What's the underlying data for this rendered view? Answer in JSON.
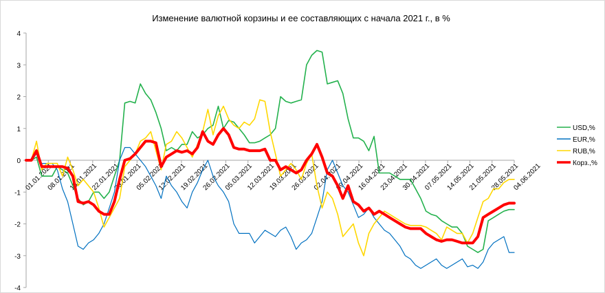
{
  "chart_data": {
    "type": "line",
    "title": "Изменение  валютной корзины и ее составляющих  с начала 2021 г., в %",
    "xlabel": "",
    "ylabel": "",
    "ylim": [
      -4,
      4
    ],
    "yticks": [
      -4,
      -3,
      -2,
      -1,
      0,
      1,
      2,
      3,
      4
    ],
    "grid": false,
    "legend_position": "right",
    "x_tick_labels": [
      "01.01.2021",
      "08.01.2021",
      "15.01.2021",
      "22.01.2021",
      "29.01.2021",
      "05.02.2021",
      "12.02.2021",
      "19.02.2021",
      "26.02.2021",
      "05.03.2021",
      "12.03.2021",
      "19.03.2021",
      "26.03.2021",
      "02.04.2021",
      "09.04.2021",
      "16.04.2021",
      "23.04.2021",
      "30.04.2021",
      "07.05.2021",
      "14.05.2021",
      "21.05.2021",
      "28.05.2021",
      "04.06.2021"
    ],
    "series": [
      {
        "name": "USD,%",
        "color": "#22b14c",
        "width": 1.6,
        "values": [
          0,
          0,
          0.1,
          -0.5,
          -0.5,
          -0.5,
          -0.2,
          -0.3,
          -0.4,
          -0.8,
          -1.2,
          -1.4,
          -1.3,
          -1.0,
          -1.0,
          -1.2,
          -1.0,
          -0.5,
          0,
          1.8,
          1.85,
          1.8,
          2.4,
          2.1,
          1.9,
          1.5,
          1.0,
          0.3,
          0.4,
          0.3,
          0.5,
          0.5,
          0.9,
          0.7,
          0.8,
          1.0,
          1.1,
          1.7,
          1.0,
          1.25,
          1.2,
          1.0,
          0.8,
          0.55,
          0.55,
          0.6,
          0.7,
          0.8,
          1.0,
          2.0,
          1.85,
          1.8,
          1.85,
          1.9,
          3.0,
          3.3,
          3.45,
          3.4,
          2.4,
          2.45,
          2.5,
          2.1,
          1.3,
          0.7,
          0.7,
          0.6,
          0.3,
          0.75,
          -0.4,
          -0.4,
          -0.4,
          -0.5,
          -0.6,
          -0.6,
          -0.6,
          -0.9,
          -1.2,
          -1.6,
          -1.7,
          -1.75,
          -1.9,
          -2.0,
          -2.1,
          -2.1,
          -2.3,
          -2.7,
          -2.8,
          -2.9,
          -2.8,
          -1.9,
          -1.8,
          -1.7,
          -1.6,
          -1.55,
          -1.55
        ]
      },
      {
        "name": "EUR,%",
        "color": "#0070c0",
        "width": 1.2,
        "values": [
          0,
          0,
          0.2,
          -0.1,
          -0.1,
          -0.1,
          -0.3,
          -0.9,
          -1.3,
          -2.0,
          -2.7,
          -2.8,
          -2.6,
          -2.5,
          -2.3,
          -2.0,
          -1.5,
          -1.0,
          0,
          0.4,
          0.4,
          0.2,
          0.0,
          -0.2,
          -0.5,
          -0.8,
          -1.2,
          -0.5,
          -0.8,
          -1.0,
          -1.3,
          -1.5,
          -1.0,
          -0.7,
          -0.3,
          0,
          -0.5,
          -0.8,
          -1.0,
          -1.3,
          -2.0,
          -2.3,
          -2.3,
          -2.3,
          -2.6,
          -2.4,
          -2.2,
          -2.3,
          -2.4,
          -2.2,
          -2.1,
          -2.4,
          -2.8,
          -2.6,
          -2.5,
          -2.3,
          -1.8,
          -1.3,
          -0.3,
          0.0,
          -0.4,
          -0.8,
          -1.0,
          -1.4,
          -1.8,
          -1.7,
          -1.5,
          -1.8,
          -2.0,
          -2.2,
          -2.3,
          -2.5,
          -2.7,
          -3.0,
          -3.1,
          -3.3,
          -3.4,
          -3.3,
          -3.2,
          -3.1,
          -3.3,
          -3.4,
          -3.3,
          -3.2,
          -3.1,
          -3.35,
          -3.3,
          -3.4,
          -3.2,
          -2.8,
          -2.6,
          -2.5,
          -2.4,
          -2.9,
          -2.9
        ]
      },
      {
        "name": "RUB,%",
        "color": "#ffd700",
        "width": 1.6,
        "values": [
          0,
          0,
          0.6,
          -0.3,
          -0.1,
          -0.1,
          -0.1,
          -0.5,
          0.1,
          -0.3,
          -0.8,
          -0.6,
          -0.8,
          -1.0,
          -1.5,
          -2.1,
          -1.8,
          -1.5,
          -1.2,
          -0.2,
          0.0,
          0.2,
          0.6,
          0.7,
          0.9,
          0.3,
          -0.3,
          0.5,
          0.6,
          0.9,
          0.7,
          0.4,
          0.1,
          0.5,
          0.9,
          1.6,
          0.8,
          1.4,
          1.7,
          1.3,
          1.1,
          1.0,
          1.2,
          1.1,
          1.3,
          1.9,
          1.85,
          0.9,
          0.2,
          -0.5,
          -0.3,
          -0.1,
          -0.3,
          -0.6,
          -0.1,
          0.2,
          -0.8,
          -1.5,
          -1.0,
          -1.2,
          -1.7,
          -2.4,
          -2.2,
          -2.0,
          -2.6,
          -3.0,
          -2.3,
          -2.0,
          -1.8,
          -1.6,
          -1.7,
          -1.8,
          -1.9,
          -2.0,
          -2.05,
          -2.05,
          -2.05,
          -2.1,
          -2.2,
          -2.3,
          -2.5,
          -2.1,
          -2.2,
          -2.3,
          -2.3,
          -2.6,
          -2.3,
          -1.8,
          -1.3,
          -1.2,
          -0.9,
          -0.9,
          -0.7,
          -0.6,
          -0.6
        ]
      },
      {
        "name": "Корз.,%",
        "color": "#ff0000",
        "width": 4,
        "values": [
          0,
          0,
          0.3,
          -0.2,
          -0.2,
          -0.2,
          -0.2,
          -0.2,
          -0.25,
          -0.5,
          -1.3,
          -1.35,
          -1.3,
          -1.4,
          -1.6,
          -1.7,
          -1.7,
          -1.3,
          -0.6,
          0.0,
          0.05,
          0.2,
          0.4,
          0.6,
          0.6,
          0.55,
          -0.2,
          0.1,
          0.2,
          0.3,
          0.25,
          0.3,
          0.2,
          0.4,
          0.9,
          0.6,
          0.5,
          0.8,
          1.0,
          0.8,
          0.4,
          0.35,
          0.35,
          0.3,
          0.3,
          0.3,
          0.35,
          0.0,
          0.0,
          -0.3,
          -0.2,
          -0.3,
          -0.4,
          -0.3,
          0.0,
          0.2,
          0.5,
          0.1,
          -0.4,
          -0.5,
          -0.8,
          -1.2,
          -0.8,
          -1.3,
          -1.4,
          -1.6,
          -1.5,
          -1.7,
          -1.6,
          -1.7,
          -1.8,
          -1.9,
          -2.0,
          -2.1,
          -2.15,
          -2.15,
          -2.15,
          -2.3,
          -2.4,
          -2.5,
          -2.55,
          -2.5,
          -2.5,
          -2.55,
          -2.6,
          -2.6,
          -2.6,
          -2.4,
          -1.8,
          -1.7,
          -1.6,
          -1.5,
          -1.4,
          -1.35,
          -1.35
        ]
      }
    ]
  }
}
